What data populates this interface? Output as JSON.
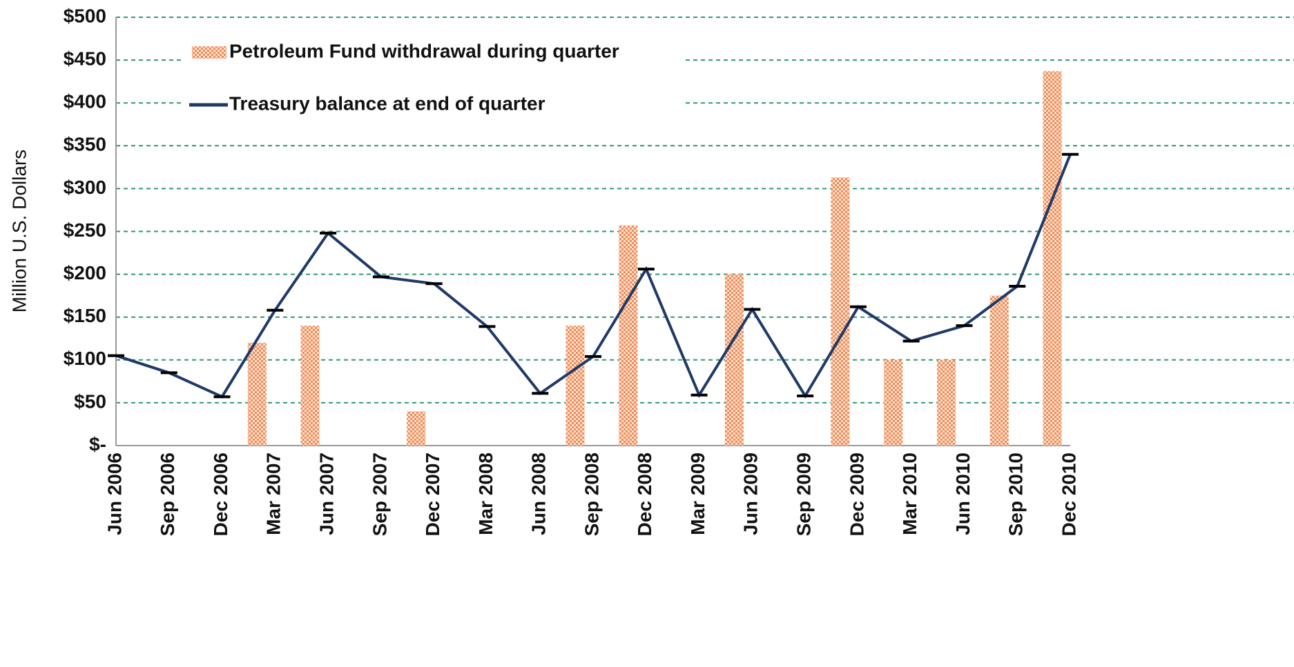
{
  "chart_data": {
    "type": "bar",
    "y_label": "Million U.S. Dollars",
    "categories": [
      "Jun 2006",
      "Sep 2006",
      "Dec 2006",
      "Mar 2007",
      "Jun 2007",
      "Sep 2007",
      "Dec 2007",
      "Mar 2008",
      "Jun 2008",
      "Sep 2008",
      "Dec 2008",
      "Mar 2009",
      "Jun 2009",
      "Sep 2009",
      "Dec 2009",
      "Mar 2010",
      "Jun 2010",
      "Sep 2010",
      "Dec 2010"
    ],
    "series": [
      {
        "name": "Petroleum Fund withdrawal during quarter",
        "type": "bar",
        "color": "#f08a58",
        "values": [
          null,
          null,
          null,
          120,
          140,
          null,
          40,
          null,
          null,
          140,
          257,
          null,
          200,
          null,
          313,
          100,
          100,
          175,
          437
        ]
      },
      {
        "name": "Treasury balance at end of quarter",
        "type": "line",
        "color": "#1f3a68",
        "values": [
          105,
          85,
          57,
          158,
          248,
          197,
          189,
          139,
          61,
          104,
          206,
          59,
          159,
          58,
          162,
          122,
          140,
          186,
          340
        ]
      }
    ],
    "ylim": [
      0,
      500
    ],
    "yticks": [
      {
        "value": 0,
        "label": "$-"
      },
      {
        "value": 50,
        "label": "$50"
      },
      {
        "value": 100,
        "label": "$100"
      },
      {
        "value": 150,
        "label": "$150"
      },
      {
        "value": 200,
        "label": "$200"
      },
      {
        "value": 250,
        "label": "$250"
      },
      {
        "value": 300,
        "label": "$300"
      },
      {
        "value": 350,
        "label": "$350"
      },
      {
        "value": 400,
        "label": "$400"
      },
      {
        "value": 450,
        "label": "$450"
      },
      {
        "value": 500,
        "label": "$500"
      }
    ],
    "grid": true,
    "grid_color": "#2e9a6b"
  }
}
